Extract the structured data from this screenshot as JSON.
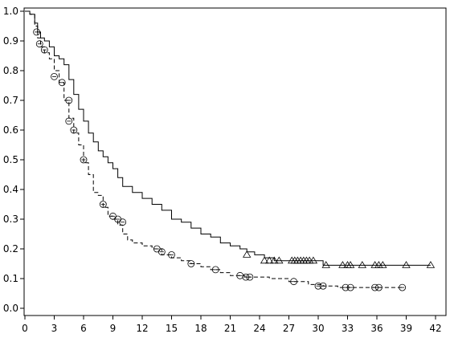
{
  "chart_data": {
    "type": "line",
    "title": "",
    "xlabel": "",
    "ylabel": "",
    "xlim": [
      0,
      42
    ],
    "ylim": [
      0,
      1
    ],
    "x_ticks": [
      0,
      3,
      6,
      9,
      12,
      15,
      18,
      21,
      24,
      27,
      30,
      33,
      36,
      39,
      42
    ],
    "x_tick_labels": [
      "0",
      "3",
      "6",
      "9",
      "12",
      "15",
      "18",
      "21",
      "24",
      "27",
      "30",
      "33",
      "36",
      "39",
      "42"
    ],
    "y_ticks": [
      0,
      0.1,
      0.2,
      0.3,
      0.4,
      0.5,
      0.6,
      0.7,
      0.8,
      0.9,
      1.0
    ],
    "y_tick_labels": [
      "0.0",
      "0.1",
      "0.2",
      "0.3",
      "0.4",
      "0.5",
      "0.6",
      "0.7",
      "0.8",
      "0.9",
      "1.0"
    ],
    "grid": false,
    "legend": "none",
    "series": [
      {
        "style": "solid",
        "color": "#000000",
        "censor_marker": "triangle",
        "points": [
          [
            0,
            1.0
          ],
          [
            0.5,
            0.99
          ],
          [
            1.0,
            0.96
          ],
          [
            1.3,
            0.93
          ],
          [
            1.6,
            0.91
          ],
          [
            2.0,
            0.9
          ],
          [
            2.5,
            0.88
          ],
          [
            3.0,
            0.85
          ],
          [
            3.5,
            0.84
          ],
          [
            4.0,
            0.82
          ],
          [
            4.5,
            0.77
          ],
          [
            5.0,
            0.72
          ],
          [
            5.5,
            0.67
          ],
          [
            6.0,
            0.63
          ],
          [
            6.5,
            0.59
          ],
          [
            7.0,
            0.56
          ],
          [
            7.5,
            0.53
          ],
          [
            8.0,
            0.51
          ],
          [
            8.5,
            0.49
          ],
          [
            9.0,
            0.47
          ],
          [
            9.5,
            0.44
          ],
          [
            10.0,
            0.41
          ],
          [
            11.0,
            0.39
          ],
          [
            12.0,
            0.37
          ],
          [
            13.0,
            0.35
          ],
          [
            14.0,
            0.33
          ],
          [
            15.0,
            0.3
          ],
          [
            16.0,
            0.29
          ],
          [
            17.0,
            0.27
          ],
          [
            18.0,
            0.25
          ],
          [
            19.0,
            0.24
          ],
          [
            20.0,
            0.22
          ],
          [
            21.0,
            0.21
          ],
          [
            22.0,
            0.2
          ],
          [
            22.7,
            0.19
          ],
          [
            23.5,
            0.18
          ],
          [
            24.5,
            0.17
          ],
          [
            25.5,
            0.16
          ],
          [
            30.0,
            0.16
          ],
          [
            30.5,
            0.145
          ],
          [
            41.5,
            0.145
          ]
        ],
        "censored": [
          [
            22.7,
            0.18
          ],
          [
            24.5,
            0.16
          ],
          [
            25.0,
            0.16
          ],
          [
            25.5,
            0.16
          ],
          [
            26.0,
            0.16
          ],
          [
            27.3,
            0.16
          ],
          [
            27.6,
            0.16
          ],
          [
            27.9,
            0.16
          ],
          [
            28.2,
            0.16
          ],
          [
            28.5,
            0.16
          ],
          [
            28.8,
            0.16
          ],
          [
            29.1,
            0.16
          ],
          [
            29.5,
            0.16
          ],
          [
            30.8,
            0.145
          ],
          [
            32.5,
            0.145
          ],
          [
            33.0,
            0.145
          ],
          [
            33.3,
            0.145
          ],
          [
            34.5,
            0.145
          ],
          [
            35.8,
            0.145
          ],
          [
            36.2,
            0.145
          ],
          [
            36.6,
            0.145
          ],
          [
            39.0,
            0.145
          ],
          [
            41.5,
            0.145
          ]
        ]
      },
      {
        "style": "dashed",
        "color": "#000000",
        "censor_marker": "circle",
        "points": [
          [
            0,
            1.0
          ],
          [
            0.5,
            0.99
          ],
          [
            1.0,
            0.95
          ],
          [
            1.3,
            0.91
          ],
          [
            1.6,
            0.88
          ],
          [
            2.0,
            0.86
          ],
          [
            2.5,
            0.84
          ],
          [
            3.0,
            0.8
          ],
          [
            3.5,
            0.76
          ],
          [
            4.0,
            0.7
          ],
          [
            4.5,
            0.64
          ],
          [
            5.0,
            0.59
          ],
          [
            5.5,
            0.55
          ],
          [
            6.0,
            0.49
          ],
          [
            6.5,
            0.45
          ],
          [
            7.0,
            0.39
          ],
          [
            7.5,
            0.38
          ],
          [
            8.0,
            0.34
          ],
          [
            8.5,
            0.31
          ],
          [
            9.0,
            0.3
          ],
          [
            9.5,
            0.28
          ],
          [
            10.0,
            0.25
          ],
          [
            10.5,
            0.23
          ],
          [
            11.0,
            0.22
          ],
          [
            12.0,
            0.21
          ],
          [
            13.0,
            0.2
          ],
          [
            14.0,
            0.18
          ],
          [
            15.0,
            0.17
          ],
          [
            16.0,
            0.16
          ],
          [
            17.0,
            0.15
          ],
          [
            18.0,
            0.14
          ],
          [
            19.0,
            0.13
          ],
          [
            20.0,
            0.12
          ],
          [
            21.0,
            0.11
          ],
          [
            22.5,
            0.105
          ],
          [
            25.0,
            0.1
          ],
          [
            27.0,
            0.09
          ],
          [
            29.0,
            0.08
          ],
          [
            30.5,
            0.075
          ],
          [
            32.0,
            0.07
          ],
          [
            38.6,
            0.07
          ]
        ],
        "censored": [
          [
            1.2,
            0.93
          ],
          [
            1.5,
            0.89
          ],
          [
            2.0,
            0.87
          ],
          [
            3.0,
            0.78
          ],
          [
            3.8,
            0.76
          ],
          [
            4.5,
            0.7
          ],
          [
            4.5,
            0.63
          ],
          [
            5.0,
            0.6
          ],
          [
            6.0,
            0.5
          ],
          [
            8.0,
            0.35
          ],
          [
            9.0,
            0.31
          ],
          [
            9.5,
            0.3
          ],
          [
            10.0,
            0.29
          ],
          [
            13.5,
            0.2
          ],
          [
            14.0,
            0.19
          ],
          [
            15.0,
            0.18
          ],
          [
            17.0,
            0.15
          ],
          [
            19.5,
            0.13
          ],
          [
            22.0,
            0.11
          ],
          [
            22.6,
            0.105
          ],
          [
            23.0,
            0.105
          ],
          [
            27.5,
            0.09
          ],
          [
            30.0,
            0.075
          ],
          [
            30.5,
            0.075
          ],
          [
            32.8,
            0.07
          ],
          [
            33.3,
            0.07
          ],
          [
            35.8,
            0.07
          ],
          [
            36.2,
            0.07
          ],
          [
            38.6,
            0.07
          ]
        ]
      }
    ]
  }
}
